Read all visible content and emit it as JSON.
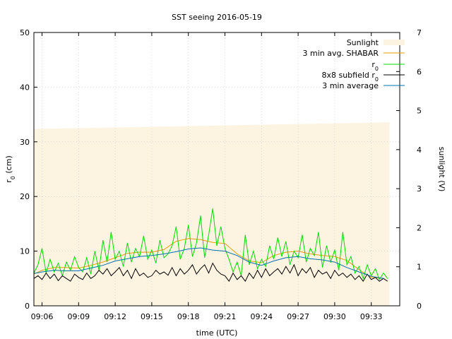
{
  "chart_data": {
    "type": "line",
    "title": "SST seeing 2016-05-19",
    "xlabel": "time (UTC)",
    "ylabel": "r0 (cm)",
    "ylabel_main": "r",
    "ylabel_sub": "0",
    "ylabel_tail": " (cm)",
    "y2label": "sunlight (V)",
    "xlim": [
      "09:05:20",
      "09:35:20"
    ],
    "ylim": [
      0,
      50
    ],
    "y2lim": [
      0,
      7
    ],
    "x_ticks": [
      "09:06",
      "09:09",
      "09:12",
      "09:15",
      "09:18",
      "09:21",
      "09:24",
      "09:27",
      "09:30",
      "09:33"
    ],
    "y_ticks": [
      0,
      10,
      20,
      30,
      40,
      50
    ],
    "y2_ticks": [
      0,
      1,
      2,
      3,
      4,
      5,
      6,
      7
    ],
    "grid": true,
    "legend_position": "top-right",
    "series": [
      {
        "name": "Sunlight",
        "style": "area",
        "axis": "y2",
        "color": "#fdf3e1",
        "x": [
          "09:05:20",
          "09:34:30"
        ],
        "values": [
          4.53,
          4.7
        ]
      },
      {
        "name": "3 min avg. SHABAR",
        "style": "line",
        "axis": "y",
        "color": "#e69f00",
        "x": [
          "09:05:20",
          "09:06:00",
          "09:07:00",
          "09:08:00",
          "09:09:00",
          "09:10:00",
          "09:11:00",
          "09:12:00",
          "09:13:00",
          "09:14:00",
          "09:15:00",
          "09:16:00",
          "09:17:00",
          "09:18:00",
          "09:19:00",
          "09:20:00",
          "09:21:00",
          "09:22:00",
          "09:23:00",
          "09:24:00",
          "09:25:00",
          "09:26:00",
          "09:27:00",
          "09:28:00",
          "09:29:00",
          "09:30:00",
          "09:31:00",
          "09:32:00",
          "09:33:00",
          "09:34:00"
        ],
        "values": [
          5.8,
          6.5,
          7.0,
          7.0,
          6.9,
          7.4,
          8.0,
          8.8,
          9.6,
          9.8,
          9.8,
          10.3,
          11.8,
          12.3,
          12.1,
          11.6,
          11.4,
          9.5,
          8.2,
          7.9,
          9.2,
          9.8,
          10.0,
          9.5,
          9.2,
          9.0,
          8.3,
          6.6,
          5.2,
          5.0
        ]
      },
      {
        "name": "r0",
        "name_main": "r",
        "name_sub": "0",
        "style": "line",
        "axis": "y",
        "color": "#00dd00",
        "x": [
          "09:05:20",
          "09:05:40",
          "09:06:00",
          "09:06:20",
          "09:06:40",
          "09:07:00",
          "09:07:20",
          "09:07:40",
          "09:08:00",
          "09:08:20",
          "09:08:40",
          "09:09:00",
          "09:09:20",
          "09:09:40",
          "09:10:00",
          "09:10:20",
          "09:10:40",
          "09:11:00",
          "09:11:20",
          "09:11:40",
          "09:12:00",
          "09:12:20",
          "09:12:40",
          "09:13:00",
          "09:13:20",
          "09:13:40",
          "09:14:00",
          "09:14:20",
          "09:14:40",
          "09:15:00",
          "09:15:20",
          "09:15:40",
          "09:16:00",
          "09:16:20",
          "09:16:40",
          "09:17:00",
          "09:17:20",
          "09:17:40",
          "09:18:00",
          "09:18:20",
          "09:18:40",
          "09:19:00",
          "09:19:20",
          "09:19:40",
          "09:20:00",
          "09:20:20",
          "09:20:40",
          "09:21:00",
          "09:21:20",
          "09:21:40",
          "09:22:00",
          "09:22:20",
          "09:22:40",
          "09:23:00",
          "09:23:20",
          "09:23:40",
          "09:24:00",
          "09:24:20",
          "09:24:40",
          "09:25:00",
          "09:25:20",
          "09:25:40",
          "09:26:00",
          "09:26:20",
          "09:26:40",
          "09:27:00",
          "09:27:20",
          "09:27:40",
          "09:28:00",
          "09:28:20",
          "09:28:40",
          "09:29:00",
          "09:29:20",
          "09:29:40",
          "09:30:00",
          "09:30:20",
          "09:30:40",
          "09:31:00",
          "09:31:20",
          "09:31:40",
          "09:32:00",
          "09:32:20",
          "09:32:40",
          "09:33:00",
          "09:33:20",
          "09:33:40",
          "09:34:00",
          "09:34:20"
        ],
        "values": [
          6.0,
          7.5,
          10.5,
          6.0,
          8.5,
          6.2,
          7.8,
          5.5,
          8.0,
          6.5,
          9.0,
          7.0,
          6.2,
          8.8,
          5.8,
          10.0,
          6.5,
          12.0,
          8.0,
          13.5,
          8.5,
          10.0,
          7.2,
          11.5,
          8.0,
          10.5,
          9.0,
          12.8,
          8.5,
          10.2,
          7.8,
          12.0,
          8.8,
          9.5,
          11.0,
          14.5,
          8.5,
          10.5,
          14.8,
          9.0,
          11.5,
          16.5,
          8.8,
          13.0,
          17.8,
          11.0,
          14.5,
          10.5,
          8.5,
          6.2,
          8.0,
          5.5,
          13.0,
          7.5,
          10.0,
          6.8,
          8.5,
          7.2,
          11.0,
          8.5,
          12.5,
          9.0,
          11.8,
          7.5,
          10.0,
          8.8,
          13.0,
          8.0,
          10.5,
          9.2,
          13.5,
          7.0,
          11.0,
          8.0,
          10.2,
          6.5,
          13.5,
          7.5,
          9.0,
          6.0,
          7.2,
          5.0,
          7.5,
          5.5,
          6.8,
          4.8,
          6.0,
          5.0
        ]
      },
      {
        "name": "8x8 subfield r0",
        "name_main": "8x8 subfield r",
        "name_sub": "0",
        "style": "line",
        "axis": "y",
        "color": "#000000",
        "x": [
          "09:05:20",
          "09:05:40",
          "09:06:00",
          "09:06:20",
          "09:06:40",
          "09:07:00",
          "09:07:20",
          "09:07:40",
          "09:08:00",
          "09:08:20",
          "09:08:40",
          "09:09:00",
          "09:09:20",
          "09:09:40",
          "09:10:00",
          "09:10:20",
          "09:10:40",
          "09:11:00",
          "09:11:20",
          "09:11:40",
          "09:12:00",
          "09:12:20",
          "09:12:40",
          "09:13:00",
          "09:13:20",
          "09:13:40",
          "09:14:00",
          "09:14:20",
          "09:14:40",
          "09:15:00",
          "09:15:20",
          "09:15:40",
          "09:16:00",
          "09:16:20",
          "09:16:40",
          "09:17:00",
          "09:17:20",
          "09:17:40",
          "09:18:00",
          "09:18:20",
          "09:18:40",
          "09:19:00",
          "09:19:20",
          "09:19:40",
          "09:20:00",
          "09:20:20",
          "09:20:40",
          "09:21:00",
          "09:21:20",
          "09:21:40",
          "09:22:00",
          "09:22:20",
          "09:22:40",
          "09:23:00",
          "09:23:20",
          "09:23:40",
          "09:24:00",
          "09:24:20",
          "09:24:40",
          "09:25:00",
          "09:25:20",
          "09:25:40",
          "09:26:00",
          "09:26:20",
          "09:26:40",
          "09:27:00",
          "09:27:20",
          "09:27:40",
          "09:28:00",
          "09:28:20",
          "09:28:40",
          "09:29:00",
          "09:29:20",
          "09:29:40",
          "09:30:00",
          "09:30:20",
          "09:30:40",
          "09:31:00",
          "09:31:20",
          "09:31:40",
          "09:32:00",
          "09:32:20",
          "09:32:40",
          "09:33:00",
          "09:33:20",
          "09:33:40",
          "09:34:00",
          "09:34:20"
        ],
        "values": [
          5.0,
          5.5,
          4.8,
          6.0,
          5.0,
          5.8,
          4.6,
          5.5,
          5.0,
          4.5,
          5.8,
          5.2,
          4.8,
          6.0,
          5.0,
          5.5,
          6.5,
          5.8,
          6.8,
          5.5,
          6.2,
          7.0,
          5.5,
          6.5,
          5.0,
          6.8,
          5.5,
          6.0,
          5.2,
          5.5,
          6.5,
          5.8,
          6.2,
          5.6,
          7.0,
          5.5,
          6.8,
          5.8,
          6.5,
          7.5,
          5.8,
          6.8,
          7.5,
          6.0,
          7.8,
          6.5,
          5.8,
          5.5,
          4.5,
          6.0,
          4.8,
          5.5,
          4.5,
          6.0,
          5.0,
          6.5,
          5.2,
          6.8,
          5.5,
          6.2,
          6.8,
          5.8,
          7.2,
          6.0,
          7.5,
          5.5,
          6.8,
          6.0,
          7.0,
          5.2,
          6.5,
          5.8,
          6.2,
          5.0,
          6.5,
          5.5,
          6.0,
          5.2,
          5.8,
          4.8,
          5.5,
          4.5,
          5.8,
          4.8,
          5.2,
          4.5,
          5.0,
          4.5
        ]
      },
      {
        "name": "3 min average",
        "style": "line",
        "axis": "y",
        "color": "#0072b2",
        "x": [
          "09:05:20",
          "09:06:00",
          "09:07:00",
          "09:08:00",
          "09:09:00",
          "09:10:00",
          "09:11:00",
          "09:12:00",
          "09:13:00",
          "09:14:00",
          "09:15:00",
          "09:16:00",
          "09:17:00",
          "09:18:00",
          "09:19:00",
          "09:20:00",
          "09:21:00",
          "09:22:00",
          "09:23:00",
          "09:24:00",
          "09:25:00",
          "09:26:00",
          "09:27:00",
          "09:28:00",
          "09:29:00",
          "09:30:00",
          "09:31:00",
          "09:32:00",
          "09:33:00",
          "09:34:00"
        ],
        "values": [
          5.9,
          6.2,
          6.5,
          6.4,
          6.4,
          6.9,
          7.4,
          8.2,
          8.6,
          9.0,
          9.2,
          9.5,
          9.9,
          10.4,
          10.6,
          10.2,
          10.0,
          9.2,
          8.0,
          7.4,
          8.2,
          8.8,
          9.0,
          8.6,
          8.4,
          8.0,
          7.0,
          6.2,
          5.4,
          5.0
        ]
      }
    ]
  }
}
